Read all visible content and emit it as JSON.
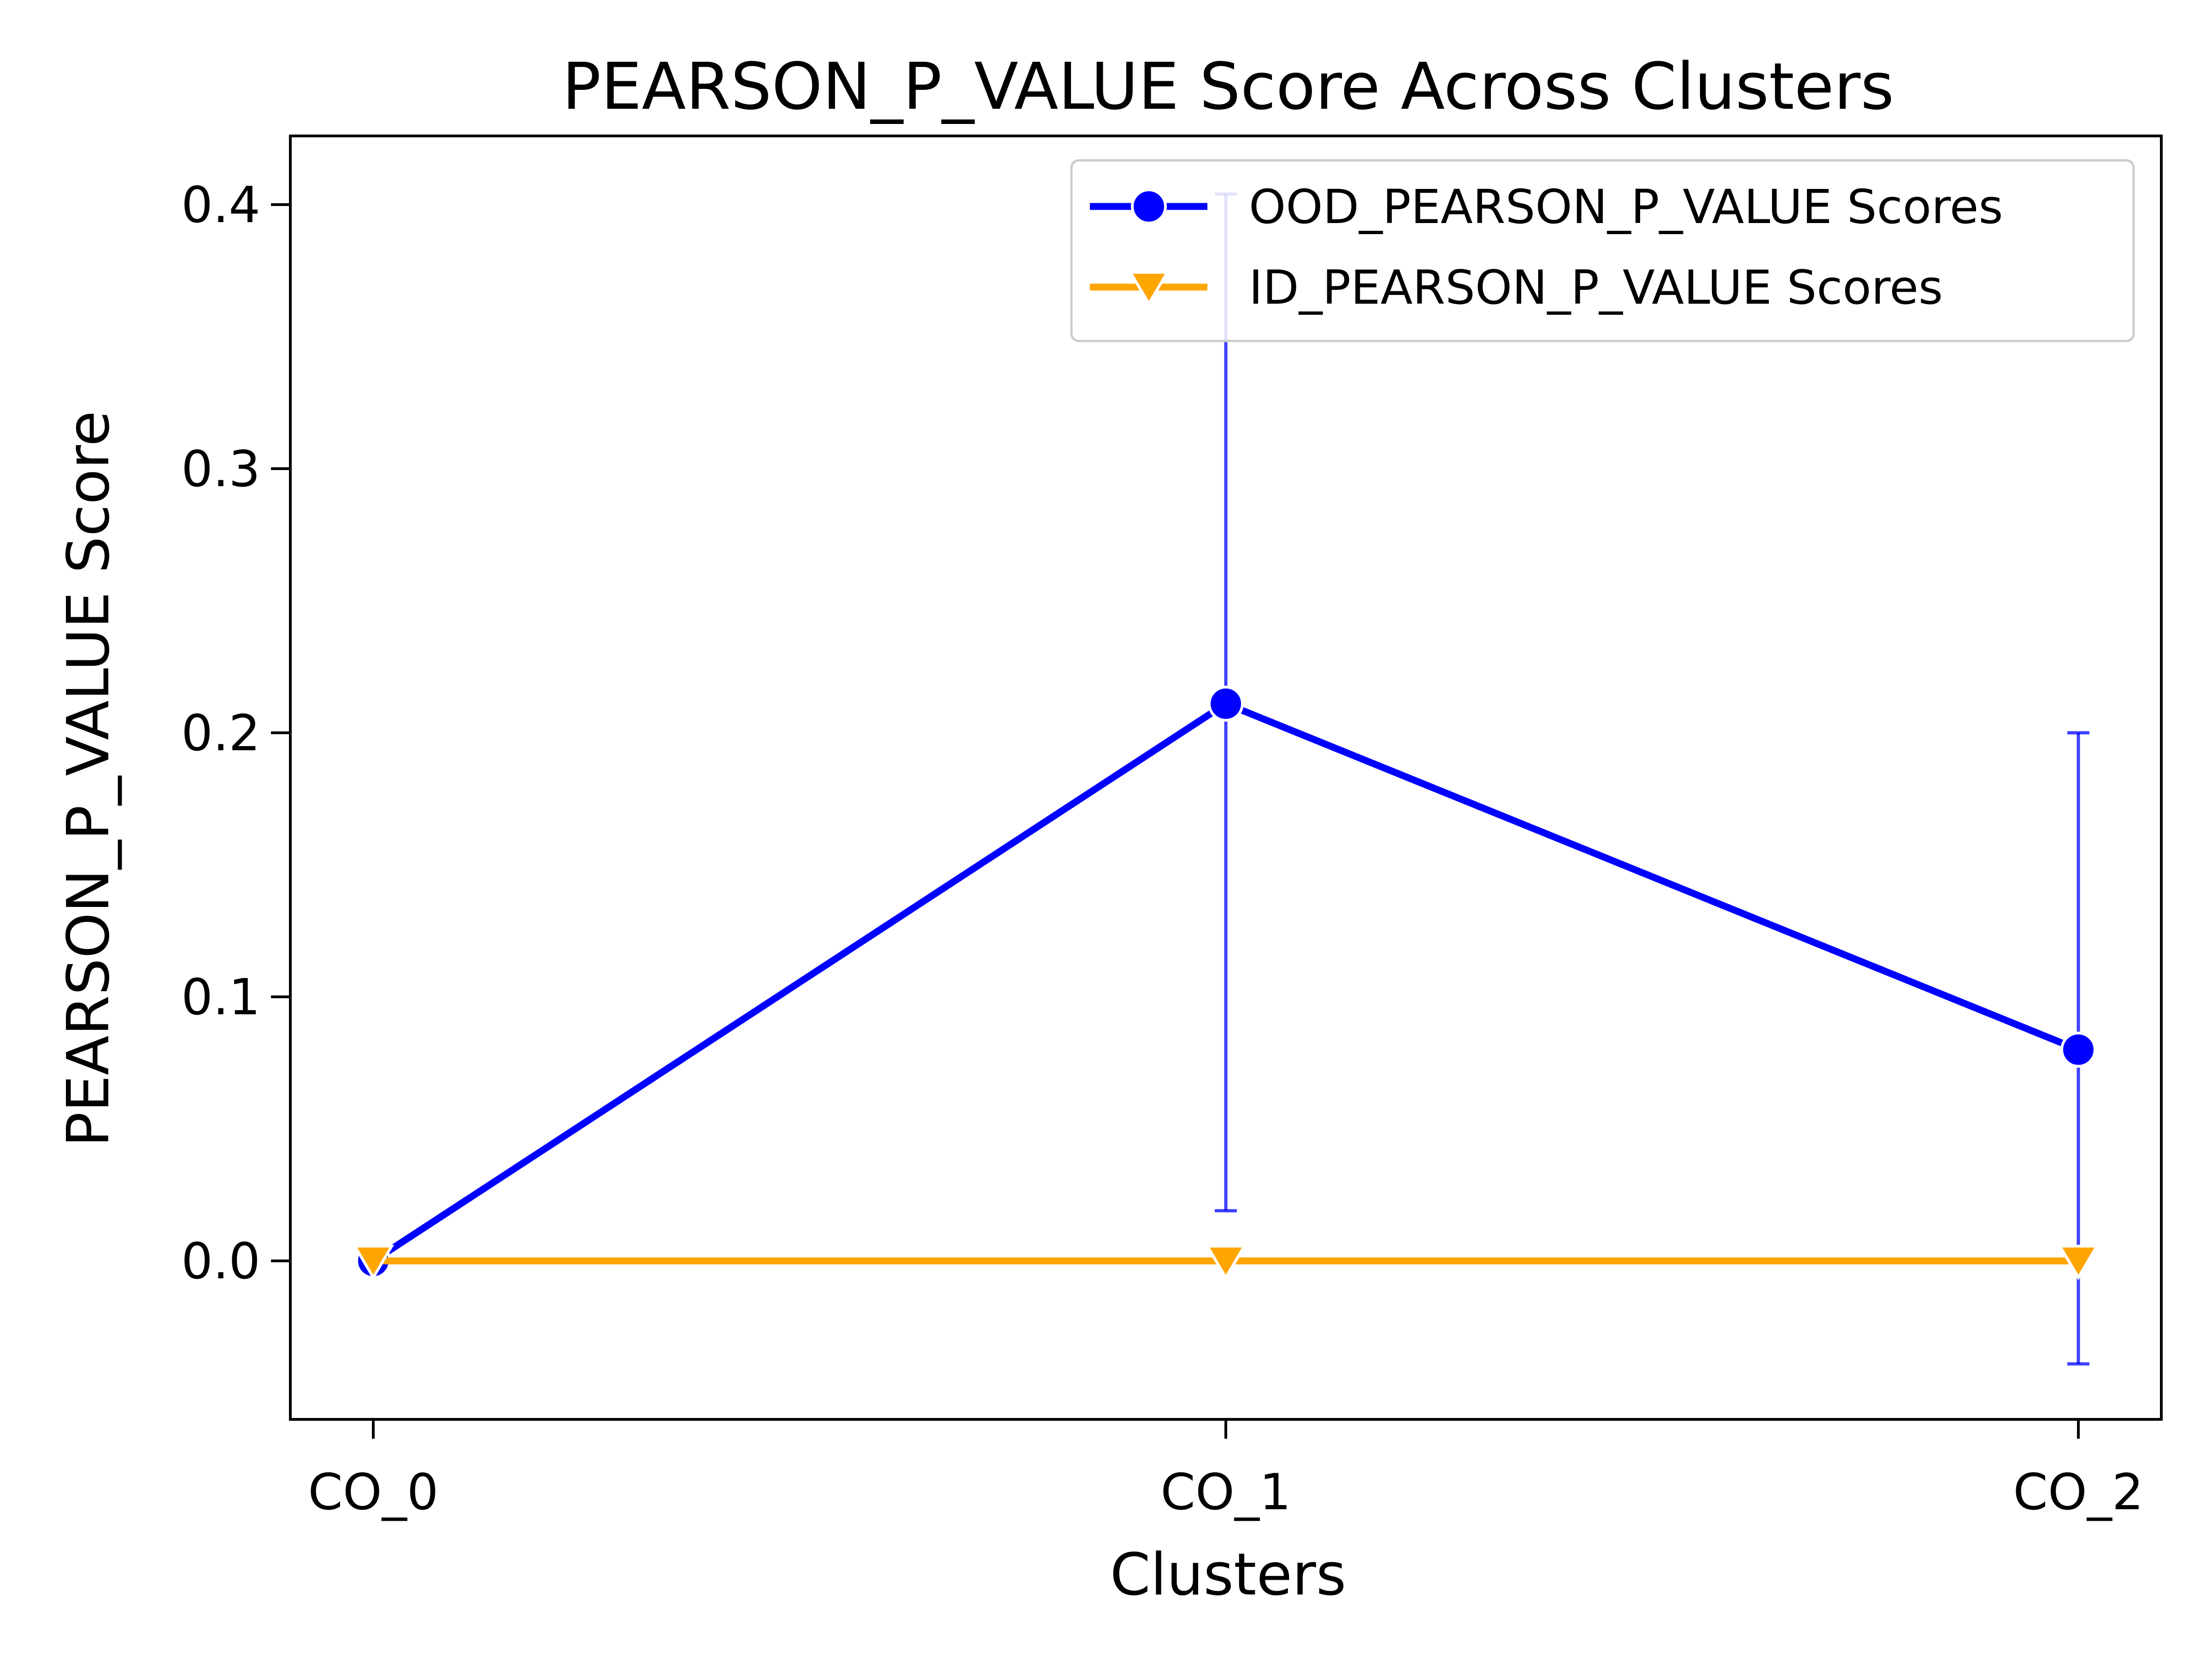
{
  "chart_data": {
    "type": "line",
    "title": "PEARSON_P_VALUE Score Across Clusters",
    "xlabel": "Clusters",
    "ylabel": "PEARSON_P_VALUE Score",
    "categories": [
      "CO_0",
      "CO_1",
      "CO_2"
    ],
    "ylim": [
      -0.06,
      0.426
    ],
    "yticks": [
      0.0,
      0.1,
      0.2,
      0.3,
      0.4
    ],
    "ytick_labels": [
      "0.0",
      "0.1",
      "0.2",
      "0.3",
      "0.4"
    ],
    "grid": false,
    "legend_position": "upper right",
    "series": [
      {
        "name": "OOD_PEARSON_P_VALUE Scores",
        "color": "#0000ff",
        "marker": "circle",
        "values": [
          0.0,
          0.211,
          0.08
        ],
        "error_bars": [
          null,
          [
            0.019,
            0.404
          ],
          [
            -0.039,
            0.2
          ]
        ]
      },
      {
        "name": "ID_PEARSON_P_VALUE Scores",
        "color": "#ffa500",
        "marker": "triangle-down",
        "values": [
          0.0,
          0.0,
          0.0
        ],
        "error_bars": [
          null,
          null,
          null
        ]
      }
    ]
  }
}
